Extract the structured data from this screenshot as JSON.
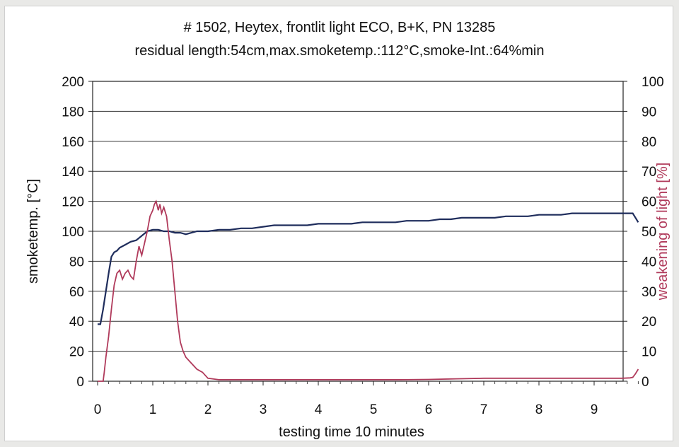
{
  "chart_data": {
    "type": "line",
    "title": "# 1502, Heytex, frontlit light ECO, B+K, PN 13285",
    "subtitle": "residual length:54cm,max.smoketemp.:112°C,smoke-Int.:64%min",
    "xlabel": "testing time 10 minutes",
    "ylabel_left": "smoketemp. [°C]",
    "ylabel_right": "weakening of light [%]",
    "xlim": [
      0,
      9.8
    ],
    "ylim_left": [
      0,
      200
    ],
    "ylim_right": [
      0,
      100
    ],
    "x_ticks": [
      "0",
      "1",
      "2",
      "3",
      "4",
      "5",
      "6",
      "7",
      "8",
      "9"
    ],
    "y_left_ticks": [
      "0",
      "20",
      "40",
      "60",
      "80",
      "100",
      "120",
      "140",
      "160",
      "180",
      "200"
    ],
    "y_right_ticks": [
      "0",
      "10",
      "20",
      "30",
      "40",
      "50",
      "60",
      "70",
      "80",
      "90",
      "100"
    ],
    "grid": true,
    "colors": {
      "temperature": "#1f2d5c",
      "light": "#b03a5b"
    },
    "series": [
      {
        "axis": "left",
        "x": [
          0,
          0.05,
          0.1,
          0.15,
          0.2,
          0.25,
          0.3,
          0.35,
          0.4,
          0.5,
          0.6,
          0.7,
          0.8,
          0.9,
          1.0,
          1.1,
          1.2,
          1.3,
          1.4,
          1.5,
          1.6,
          1.7,
          1.8,
          2.0,
          2.2,
          2.4,
          2.6,
          2.8,
          3.0,
          3.2,
          3.4,
          3.6,
          3.8,
          4.0,
          4.2,
          4.4,
          4.6,
          4.8,
          5.0,
          5.2,
          5.4,
          5.6,
          5.8,
          6.0,
          6.2,
          6.4,
          6.6,
          6.8,
          7.0,
          7.2,
          7.4,
          7.6,
          7.8,
          8.0,
          8.2,
          8.4,
          8.6,
          8.8,
          9.0,
          9.2,
          9.4,
          9.6,
          9.7,
          9.75,
          9.8
        ],
        "values": [
          38,
          38,
          48,
          60,
          72,
          83,
          86,
          87,
          89,
          91,
          93,
          94,
          97,
          100,
          101,
          101,
          100,
          100,
          99,
          99,
          98,
          99,
          100,
          100,
          101,
          101,
          102,
          102,
          103,
          104,
          104,
          104,
          104,
          105,
          105,
          105,
          105,
          106,
          106,
          106,
          106,
          107,
          107,
          107,
          108,
          108,
          109,
          109,
          109,
          109,
          110,
          110,
          110,
          111,
          111,
          111,
          112,
          112,
          112,
          112,
          112,
          112,
          112,
          109,
          106
        ]
      },
      {
        "axis": "right",
        "x": [
          0,
          0.1,
          0.12,
          0.15,
          0.2,
          0.25,
          0.3,
          0.35,
          0.4,
          0.45,
          0.5,
          0.55,
          0.6,
          0.65,
          0.7,
          0.75,
          0.8,
          0.85,
          0.9,
          0.95,
          1.0,
          1.03,
          1.06,
          1.1,
          1.13,
          1.16,
          1.2,
          1.25,
          1.3,
          1.35,
          1.4,
          1.45,
          1.5,
          1.55,
          1.6,
          1.7,
          1.8,
          1.9,
          2.0,
          2.2,
          2.5,
          3.0,
          3.5,
          4.0,
          4.5,
          5.0,
          5.5,
          6.0,
          6.5,
          7.0,
          7.5,
          8.0,
          8.5,
          9.0,
          9.5,
          9.65,
          9.7,
          9.75,
          9.8
        ],
        "values": [
          0,
          0,
          3,
          8,
          15,
          24,
          32,
          36,
          37,
          34,
          36,
          37,
          35,
          34,
          40,
          45,
          42,
          46,
          50,
          55,
          57,
          59,
          60,
          57,
          59,
          56,
          58,
          55,
          47,
          40,
          30,
          20,
          13,
          10,
          8,
          6,
          4,
          3,
          1,
          0.5,
          0.5,
          0.5,
          0.5,
          0.5,
          0.5,
          0.5,
          0.5,
          0.6,
          0.8,
          1,
          1,
          1,
          1,
          1,
          1,
          1.1,
          1.3,
          2.5,
          4
        ]
      }
    ]
  }
}
